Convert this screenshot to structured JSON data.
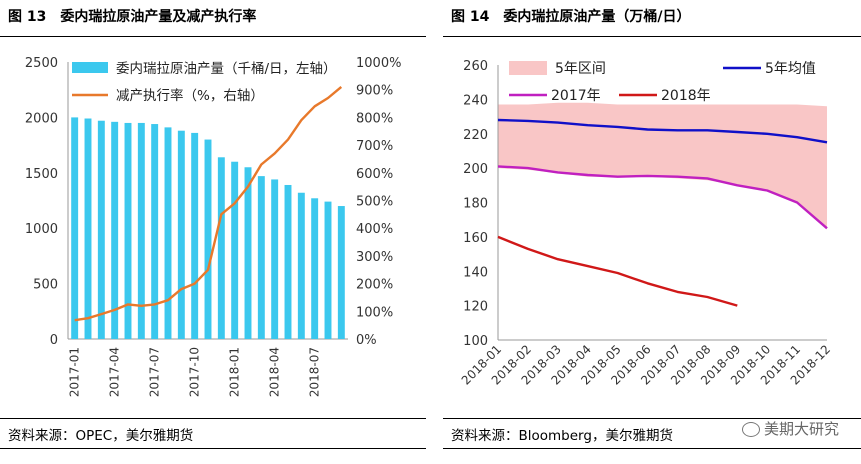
{
  "figures": [
    {
      "number": "图 13",
      "title": "委内瑞拉原油产量及减产执行率",
      "source": "资料来源：OPEC，美尔雅期货"
    },
    {
      "number": "图 14",
      "title": "委内瑞拉原油产量（万桶/日）",
      "source": "资料来源：Bloomberg，美尔雅期货"
    }
  ],
  "watermark": "美期大研究",
  "chart_data": [
    {
      "type": "bar",
      "title": "委内瑞拉原油产量及减产执行率",
      "x_ticks": [
        "2017-01",
        "2017-04",
        "2017-07",
        "2017-10",
        "2018-01",
        "2018-04",
        "2018-07"
      ],
      "months": [
        "2017-01",
        "2017-02",
        "2017-03",
        "2017-04",
        "2017-05",
        "2017-06",
        "2017-07",
        "2017-08",
        "2017-09",
        "2017-10",
        "2017-11",
        "2017-12",
        "2018-01",
        "2018-02",
        "2018-03",
        "2018-04",
        "2018-05",
        "2018-06",
        "2018-07",
        "2018-08",
        "2018-09"
      ],
      "y_left_ticks": [
        "0",
        "500",
        "1000",
        "1500",
        "2000",
        "2500"
      ],
      "y_right_ticks": [
        "0%",
        "100%",
        "200%",
        "300%",
        "400%",
        "500%",
        "600%",
        "700%",
        "800%",
        "900%",
        "1000%"
      ],
      "ylim_left": [
        0,
        2500
      ],
      "ylim_right": [
        0,
        1000
      ],
      "series": [
        {
          "name": "委内瑞拉原油产量（千桶/日，左轴）",
          "type": "bar",
          "axis": "left",
          "color": "#3BC8EE",
          "values": [
            2000,
            1990,
            1970,
            1960,
            1950,
            1950,
            1940,
            1910,
            1880,
            1860,
            1800,
            1640,
            1600,
            1550,
            1470,
            1440,
            1390,
            1320,
            1270,
            1240,
            1200
          ]
        },
        {
          "name": "减产执行率（%，右轴）",
          "type": "line",
          "axis": "right",
          "color": "#E8792B",
          "values": [
            68,
            75,
            90,
            105,
            125,
            120,
            125,
            140,
            180,
            200,
            250,
            450,
            490,
            550,
            630,
            670,
            720,
            790,
            840,
            870,
            910
          ]
        }
      ],
      "legend_position": "top-right"
    },
    {
      "type": "line",
      "title": "委内瑞拉原油产量（万桶/日）",
      "x_ticks": [
        "2018-01",
        "2018-02",
        "2018-03",
        "2018-04",
        "2018-05",
        "2018-06",
        "2018-07",
        "2018-08",
        "2018-09",
        "2018-10",
        "2018-11",
        "2018-12"
      ],
      "y_ticks": [
        "100",
        "120",
        "140",
        "160",
        "180",
        "200",
        "220",
        "240",
        "260"
      ],
      "ylim": [
        100,
        260
      ],
      "series": [
        {
          "name": "5年区间",
          "type": "area",
          "color": "#F9C6C6",
          "upper": [
            237,
            237,
            238,
            238,
            237,
            237,
            237,
            237,
            237,
            237,
            237,
            236
          ],
          "lower": [
            200,
            199,
            197,
            195,
            195,
            195,
            194,
            193,
            190,
            187,
            180,
            165
          ]
        },
        {
          "name": "5年均值",
          "type": "line",
          "color": "#1010C8",
          "values": [
            228,
            227.5,
            226.5,
            225,
            224,
            222.5,
            222,
            222,
            221,
            220,
            218,
            215
          ]
        },
        {
          "name": "2017年",
          "type": "line",
          "color": "#C020C0",
          "values": [
            201,
            200,
            197.5,
            196,
            195,
            195.5,
            195,
            194,
            190,
            187,
            180,
            165
          ]
        },
        {
          "name": "2018年",
          "type": "line",
          "color": "#D01818",
          "values": [
            160,
            153,
            147,
            143,
            139,
            133,
            128,
            125,
            120
          ]
        }
      ],
      "legend_position": "top",
      "grid": false
    }
  ]
}
